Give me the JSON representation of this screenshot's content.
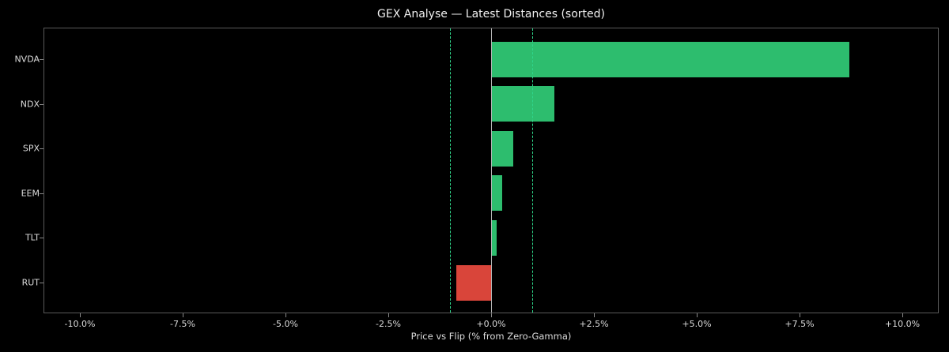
{
  "chart_data": {
    "type": "bar",
    "orientation": "horizontal",
    "title": "GEX Analyse — Latest Distances (sorted)",
    "xlabel": "Price vs Flip (% from Zero-Gamma)",
    "ylabel": "",
    "categories": [
      "NVDA",
      "NDX",
      "SPX",
      "EEM",
      "TLT",
      "RUT"
    ],
    "values": [
      8.71,
      1.54,
      0.54,
      0.26,
      0.13,
      -0.85
    ],
    "unit": "%",
    "xlim": [
      -10.9,
      10.9
    ],
    "xticks": [
      "-10.0%",
      "-7.5%",
      "-5.0%",
      "-2.5%",
      "+0.0%",
      "+2.5%",
      "+5.0%",
      "+7.5%",
      "+10.0%"
    ],
    "xtick_values": [
      -10,
      -7.5,
      -5,
      -2.5,
      0,
      2.5,
      5,
      7.5,
      10
    ],
    "reference_lines": [
      {
        "x": 0,
        "style": "solid",
        "color": "#b4b4b4"
      },
      {
        "x": -1.0,
        "style": "dashed",
        "color": "#2fd58a"
      },
      {
        "x": 1.0,
        "style": "dashed",
        "color": "#2fd58a"
      }
    ],
    "colors": {
      "positive": "#2dbd6e",
      "negative": "#d9453a",
      "background": "#000000"
    },
    "grid": false,
    "legend": null
  }
}
